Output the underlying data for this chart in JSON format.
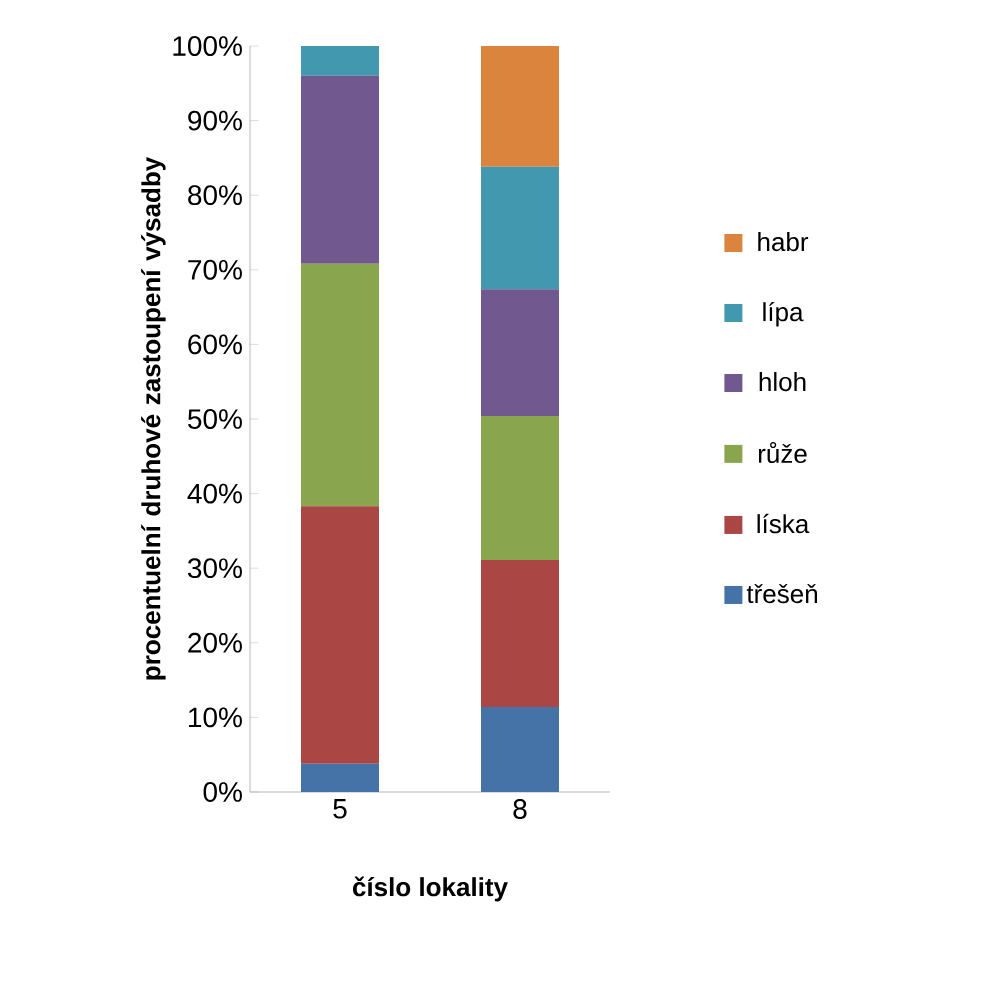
{
  "chart_data": {
    "type": "bar",
    "stacked": true,
    "xlabel": "číslo lokality",
    "ylabel": "procentuelní druhové zastoupení výsadby",
    "categories": [
      "5",
      "8"
    ],
    "series": [
      {
        "name": "třešeň",
        "color": "#4572a7",
        "values": [
          3.8,
          11.4
        ]
      },
      {
        "name": "líska",
        "color": "#aa4643",
        "values": [
          34.5,
          19.7
        ]
      },
      {
        "name": "růže",
        "color": "#89a54e",
        "values": [
          32.5,
          19.3
        ]
      },
      {
        "name": "hloh",
        "color": "#71588f",
        "values": [
          25.2,
          17.0
        ]
      },
      {
        "name": "lípa",
        "color": "#4198af",
        "values": [
          4.0,
          16.4
        ]
      },
      {
        "name": "habr",
        "color": "#db843d",
        "values": [
          0,
          16.2
        ]
      }
    ],
    "ylim": [
      0,
      100
    ],
    "yticks": [
      {
        "value": 0,
        "label": "0%"
      },
      {
        "value": 10,
        "label": "10%"
      },
      {
        "value": 20,
        "label": "20%"
      },
      {
        "value": 30,
        "label": "30%"
      },
      {
        "value": 40,
        "label": "40%"
      },
      {
        "value": 50,
        "label": "50%"
      },
      {
        "value": 60,
        "label": "60%"
      },
      {
        "value": 70,
        "label": "70%"
      },
      {
        "value": 80,
        "label": "80%"
      },
      {
        "value": 90,
        "label": "90%"
      },
      {
        "value": 100,
        "label": "100%"
      }
    ],
    "grid": false,
    "legend": "right"
  }
}
